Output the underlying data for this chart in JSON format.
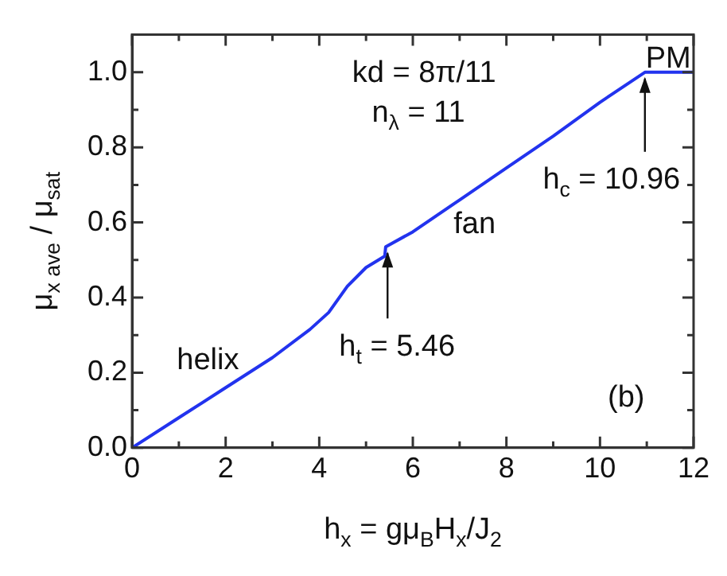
{
  "chart_data": {
    "type": "line",
    "xlabel": "h$_{x}$ = gμ$_{B}$H$_{x}$/J$_{2}$",
    "ylabel": "μ$_{x ave}$ / μ$_{sat}$",
    "x": [
      0,
      1,
      2,
      3,
      3.8,
      4.2,
      4.6,
      5.0,
      5.4,
      5.42,
      6,
      7,
      8,
      9,
      10,
      10.96,
      12
    ],
    "series": [
      {
        "color": "#2233ee",
        "values": [
          0,
          0.08,
          0.16,
          0.24,
          0.315,
          0.36,
          0.43,
          0.48,
          0.51,
          0.535,
          0.575,
          0.66,
          0.745,
          0.83,
          0.92,
          1.0,
          1.0
        ]
      }
    ],
    "xlim": [
      0,
      12
    ],
    "xticks": [
      0,
      {
        "value": 1,
        "label": null
      },
      2,
      {
        "value": 3,
        "label": null
      },
      4,
      {
        "value": 5,
        "label": null
      },
      6,
      {
        "value": 7,
        "label": null
      },
      8,
      {
        "value": 9,
        "label": null
      },
      10,
      {
        "value": 11,
        "label": null
      },
      12
    ],
    "ylim": [
      0,
      1.1
    ],
    "yticks": [
      {
        "value": 0,
        "label": "0.0"
      },
      {
        "value": 0.1,
        "label": null
      },
      0.2,
      {
        "value": 0.3,
        "label": null
      },
      0.4,
      {
        "value": 0.5,
        "label": null
      },
      0.6,
      {
        "value": 0.7,
        "label": null
      },
      0.8,
      {
        "value": 0.9,
        "label": null
      },
      {
        "value": 1,
        "label": "1.0"
      }
    ],
    "annotations": [
      "kd = 8π/11",
      "n$_{λ}$ = 11",
      "helix",
      "fan",
      "PM",
      "(b)",
      {
        "text": "h$_{t}$ = 5.46",
        "x": 5.46,
        "y": 0.535
      },
      {
        "text": "h$_{c}$ = 10.96",
        "x": 10.96,
        "y": 1.0
      }
    ],
    "grid": false,
    "legend": false,
    "marker": "none",
    "line_style": "solid"
  }
}
